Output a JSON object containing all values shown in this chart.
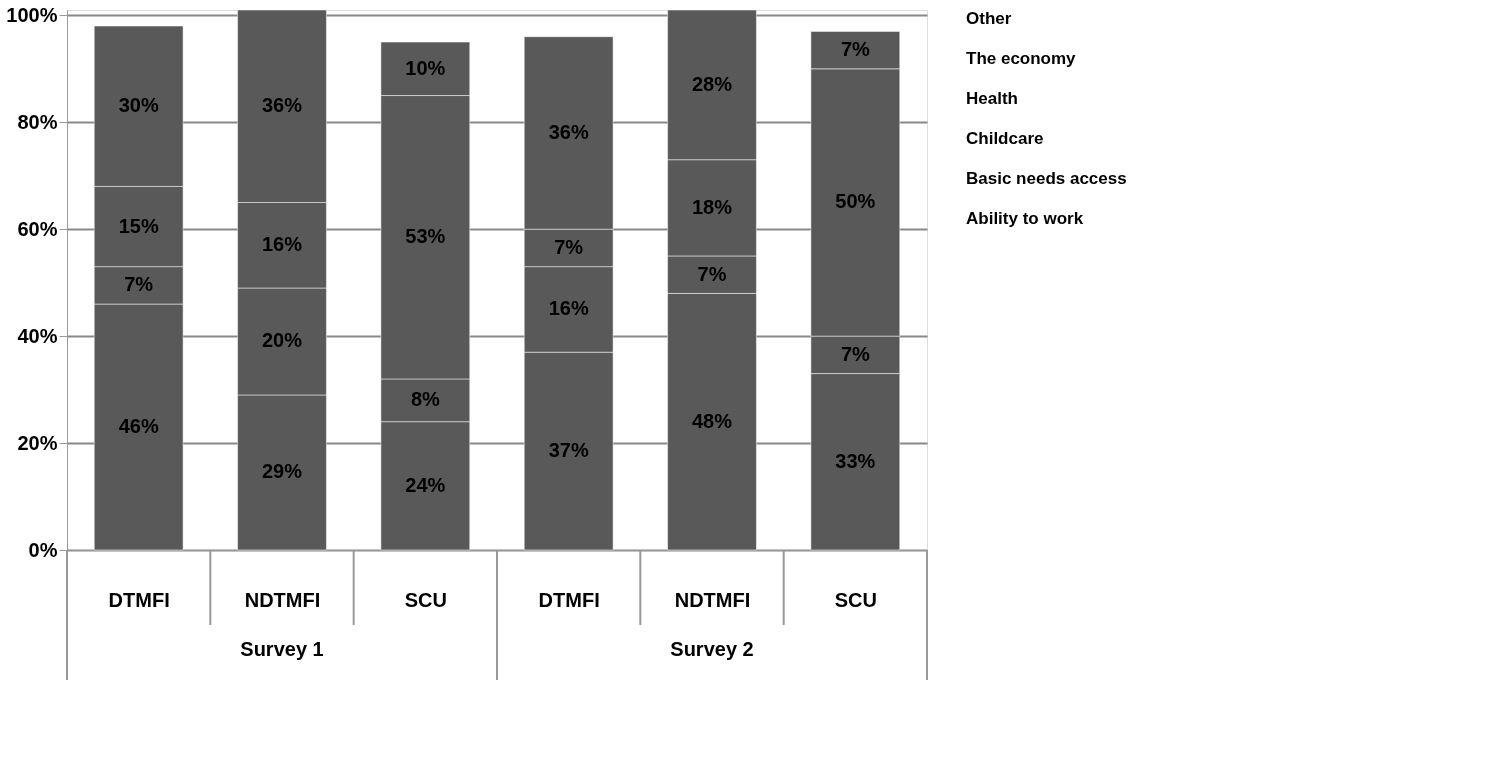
{
  "chart_data": {
    "type": "bar",
    "stacked": true,
    "categories": [
      "DTMFI",
      "NDTMFI",
      "SCU",
      "DTMFI",
      "NDTMFI",
      "SCU"
    ],
    "series": [
      {
        "name": "Ability to work",
        "color": "#595959",
        "values": [
          46,
          29,
          24,
          37,
          48,
          33
        ],
        "value_labels": [
          "46%",
          "29%",
          "24%",
          "37%",
          "48%",
          "33%"
        ]
      },
      {
        "name": "Basic needs access",
        "color": "#595959",
        "values": [
          7,
          20,
          8,
          16,
          7,
          7
        ],
        "value_labels": [
          "7%",
          "20%",
          "8%",
          "16%",
          "7%",
          "7%"
        ]
      },
      {
        "name": "Childcare",
        "values": [
          null,
          null,
          null,
          null,
          null,
          null
        ],
        "value_labels": [
          null,
          null,
          null,
          null,
          null,
          null
        ]
      },
      {
        "name": "Health",
        "color": "#595959",
        "values": [
          15,
          16,
          53,
          7,
          18,
          50
        ],
        "value_labels": [
          "15%",
          "16%",
          "53%",
          "7%",
          "18%",
          "50%"
        ]
      },
      {
        "name": "The economy",
        "values": [
          null,
          null,
          null,
          null,
          null,
          null
        ],
        "value_labels": [
          null,
          null,
          null,
          null,
          null,
          null
        ]
      },
      {
        "name": "Other",
        "color": "#595959",
        "values": [
          30,
          36,
          10,
          36,
          28,
          7
        ],
        "value_labels": [
          "30%",
          "36%",
          "10%",
          "36%",
          "28%",
          "7%"
        ]
      }
    ],
    "ylim": [
      0,
      101
    ],
    "yticks": [
      {
        "value": 0,
        "label": "0%"
      },
      {
        "value": 20,
        "label": "20%"
      },
      {
        "value": 40,
        "label": "40%"
      },
      {
        "value": 60,
        "label": "60%"
      },
      {
        "value": 80,
        "label": "80%"
      },
      {
        "value": 100,
        "label": "100%"
      }
    ],
    "grid": "y",
    "legend": "right",
    "annotations": [
      "Survey 1",
      "Survey 2"
    ]
  }
}
